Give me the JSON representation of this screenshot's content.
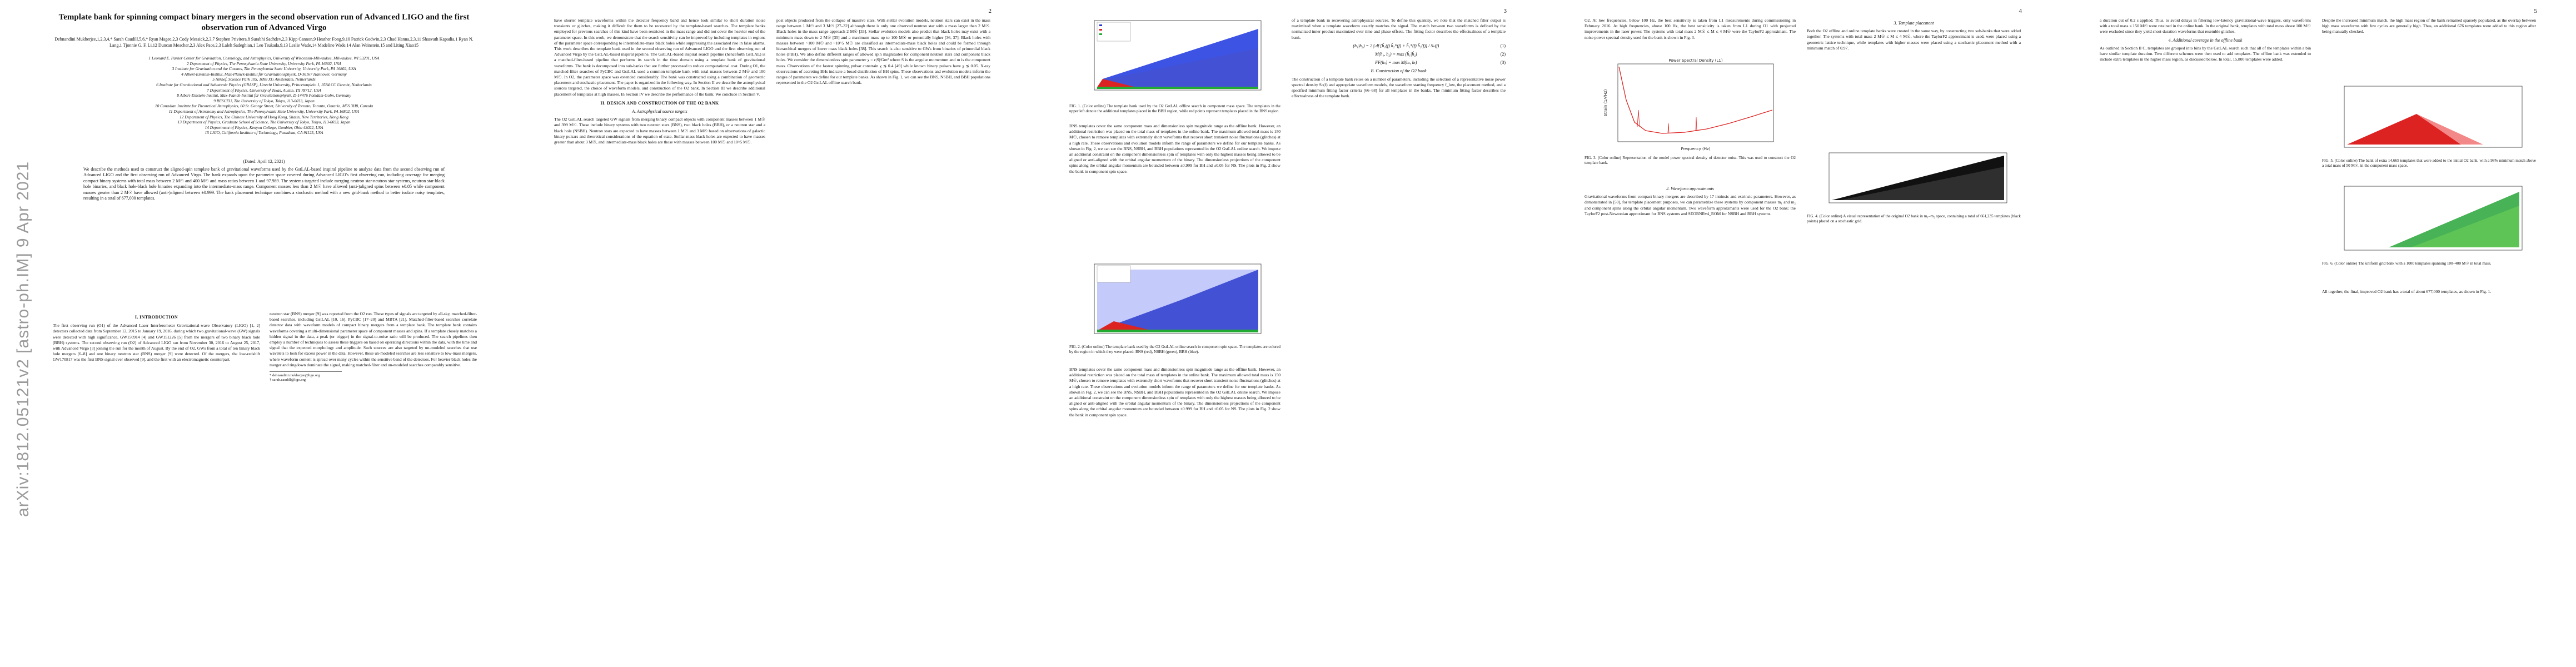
{
  "arxiv_stamp": "arXiv:1812.05121v2  [astro-ph.IM]  9 Apr 2021",
  "pages": {
    "p2": "2",
    "p3": "3",
    "p4": "4",
    "p5": "5"
  },
  "title": "Template bank for spinning compact binary mergers in the second observation run of Advanced LIGO and the first observation run of Advanced Virgo",
  "authors": "Debnandini Mukherjee,1,2,3,4,* Sarah Caudill,5,6,* Ryan Magee,2,3 Cody Messick,2,3,7 Stephen Privitera,8 Surabhi Sachdev,2,3 Kipp Cannon,9 Heather Fong,9,10 Patrick Godwin,2,3 Chad Hanna,2,3,11 Shasvath Kapadia,1 Ryan N. Lang,1 Tjonnie G. F. Li,12 Duncan Meacher,2,3 Alex Pace,2,3 Laleh Sadeghian,1 Leo Tsukada,9,13 Leslie Wade,14 Madeline Wade,14 Alan Weinstein,15 and Liting Xiao15",
  "affiliations": [
    "1 Leonard E. Parker Center for Gravitation, Cosmology, and Astrophysics, University of Wisconsin-Milwaukee, Milwaukee, WI 53201, USA",
    "2 Department of Physics, The Pennsylvania State University, University Park, PA 16802, USA",
    "3 Institute for Gravitation and the Cosmos, The Pennsylvania State University, University Park, PA 16802, USA",
    "4 Albert-Einstein-Institut, Max-Planck-Institut für Gravitationsphysik, D-30167 Hannover, Germany",
    "5 Nikhef, Science Park 105, 1098 XG Amsterdam, Netherlands",
    "6 Institute for Gravitational and Subatomic Physics (GRASP), Utrecht University, Princetonplein 1, 3584 CC Utrecht, Netherlands",
    "7 Department of Physics, University of Texas, Austin, TX 78712, USA",
    "8 Albert-Einstein-Institut, Max-Planck-Institut für Gravitationsphysik, D-14476 Potsdam-Golm, Germany",
    "9 RESCEU, The University of Tokyo, Tokyo, 113-0033, Japan",
    "10 Canadian Institute for Theoretical Astrophysics, 60 St. George Street, University of Toronto, Toronto, Ontario, M5S 3H8, Canada",
    "11 Department of Astronomy and Astrophysics, The Pennsylvania State University, University Park, PA 16802, USA",
    "12 Department of Physics, The Chinese University of Hong Kong, Shatin, New Territories, Hong Kong",
    "13 Department of Physics, Graduate School of Science, The University of Tokyo, Tokyo, 113-0033, Japan",
    "14 Department of Physics, Kenyon College, Gambier, Ohio 43022, USA",
    "15 LIGO, California Institute of Technology, Pasadena, CA 91125, USA"
  ],
  "date": "(Dated: April 12, 2021)",
  "abstract": "We describe the methods used to construct the aligned-spin template bank of gravitational waveforms used by the GstLAL-based inspiral pipeline to analyze data from the second observing run of Advanced LIGO and the first observing run of Advanced Virgo. The bank expands upon the parameter space covered during Advanced LIGO's first observing run, including coverage for merging compact binary systems with total mass between 2 M☉ and 400 M☉ and mass ratios between 1 and 97.989. The systems targeted include merging neutron star-neutron star systems, neutron star-black hole binaries, and black hole-black hole binaries expanding into the intermediate-mass range. Component masses less than 2 M☉ have allowed (anti-)aligned spins between ±0.05 while component masses greater than 2 M☉ have allowed (anti-)aligned between ±0.999. The bank placement technique combines a stochastic method with a new grid-bank method to better isolate noisy templates, resulting in a total of 677,000 templates.",
  "p1": {
    "intro_heading": "I.   INTRODUCTION",
    "intro_text": "The first observing run (O1) of the Advanced Laser Interferometer Gravitational-wave Observatory (LIGO) [1, 2] detectors collected data from September 12, 2015 to January 19, 2016, during which two gravitational-wave (GW) signals were detected with high significance, GW150914 [4] and GW151226 [5] from the mergers of two binary black hole (BBH) systems. The second observing run (O2) of Advanced LIGO ran from November 30, 2016 to August 25, 2017, with Advanced Virgo [3] joining the run for the month of August. By the end of O2, GWs from a total of ten binary black hole mergers [6–8] and one binary neutron star (BNS) merger [9] were detected. Of the mergers, the low-redshift GW170817 was the first BNS signal ever observed [9], and the first with an electromagnetic counterpart.",
    "right_text": "neutron star (BNS) merger [9] was reported from the O2 run. These types of signals are targeted by all-sky, matched-filter-based searches, including GstLAL [10, 16], PyCBC [17–20] and MBTA [21]. Matched-filter-based searches correlate detector data with waveform models of compact binary mergers from a template bank. The template bank contains waveforms covering a multi-dimensional parameter space of component masses and spins. If a template closely matches a hidden signal in the data, a peak (or trigger) in the signal-to-noise ratio will be produced. The search pipelines then employ a number of techniques to assess these triggers on based on operating directions within the data, with the time and signal that the expected morphology and amplitude. Such sources are also targeted by un-modeled searches that use wavelets to look for excess power in the data. However, these un-modeled searches are less sensitive to low-mass mergers, where waveform content is spread over many cycles within the sensitive band of the detectors. For heavier black holes the merger and ringdown dominate the signal, making matched-filter and un-modeled searches comparably sensitive.",
    "footnote_1": "* debnandini.mukherjee@ligo.org",
    "footnote_2": "† sarah.caudill@ligo.org"
  },
  "p2": {
    "left_text": "have shorter template waveforms within the detector frequency band and hence look similar to short duration noise transients or glitches, making it difficult for them to be recovered by the template-based searches. The template banks employed for previous searches of this kind have been restricted in the mass range and did not cover the heavier end of the parameter space. In this work, we demonstrate that the search sensitivity can be improved by including templates in regions of the parameter space corresponding to intermediate-mass black holes while suppressing the associated rise in false alarms. This work describes the template bank used in the second observing run of Advanced LIGO and the first observing run of Advanced Virgo by the GstLAL-based inspiral pipeline. The GstLAL-based inspiral search pipeline (henceforth GstLAL) is a matched-filter-based pipeline that performs its search in the time domain using a template bank of gravitational waveforms. The bank is decomposed into sub-banks that are further processed to reduce computational cost. During O1, the matched-filter searches of PyCBC and GstLAL used a common template bank with total masses between 2 M☉ and 100 M☉. In O2, the parameter space was extended considerably. The bank was constructed using a combination of geometric placement and stochastic placement. The paper is organized in the following way. In Section II we describe the astrophysical sources targeted, the choice of waveform models, and construction of the O2 bank. In Section III we describe additional placement of templates at high masses. In Section IV we describe the performance of the bank. We conclude in Section V.",
    "sec2_heading": "II.   DESIGN AND CONSTRUCTION OF THE O2 BANK",
    "sec2a_heading": "A.   Astrophysical source targets",
    "sec2a_text": "The O2 GstLAL search targeted GW signals from merging binary compact objects with component masses between 1 M☉ and 399 M☉. These include binary systems with two neutron stars (BNS), two black holes (BBH), or a neutron star and a black hole (NSBH). Neutron stars are expected to have masses between 1 M☉ and 3 M☉ based on observations of galactic binary pulsars and theoretical considerations of the equation of state. Stellar-mass black holes are expected to have masses greater than about 3 M☉, and intermediate-mass black holes are those with masses between 100 M☉ and 10^5 M☉.",
    "right_text": "post objects produced from the collapse of massive stars. With stellar evolution models, neutron stars can exist in the mass range between 1 M☉ and 3 M☉ [27–32] although there is only one observed neutron star with a mass larger than 2 M☉. Black holes in the mass range approach 2 M☉ [33]. Stellar evolution models also predict that black holes may exist with a minimum mass down to 2 M☉ [35] and a maximum mass up to 100 M☉ or potentially higher [36, 37]. Black holes with masses between ~100 M☉ and ~10^5 M☉ are classified as intermediate-mass black holes and could be formed through hierarchical mergers of lower mass black holes [38]. This search is also sensitive to GWs from binaries of primordial black holes (PBH). We also define different ranges of allowed spin magnitudes for component neutron stars and component black holes. We consider the dimensionless spin parameter χ = c|S|/Gm² where S is the angular momentum and m is the component mass. Observations of the fastest spinning pulsar constrain χ ≲ 0.4 [49] while known binary pulsars have χ ≲ 0.05. X-ray observations of accreting BHs indicate a broad distribution of BH spins. These observations and evolution models inform the ranges of parameters we define for our template banks. As shown in Fig. 1, we can see the BNS, NSBH, and BBH populations represented in the O2 GstLAL offline search bank."
  },
  "p3": {
    "fig1_caption": "FIG. 1. (Color online) The template bank used by the O2 GstLAL offline search in component mass space. The templates in the upper left denote the additional templates placed in the BBH region, while red points represent templates placed in the BNS region.",
    "fig2_caption": "FIG. 2. (Color online) The template bank used by the O2 GstLAL online search in component spin space. The templates are colored by the region in which they were placed: BNS (red), NSBH (green), BBH (blue).",
    "left_text": "BNS templates cover the same component mass and dimensionless spin magnitude range as the offline bank. However, an additional restriction was placed on the total mass of templates in the online bank. The maximum allowed total mass is 150 M☉, chosen to remove templates with extremely short waveforms that recover short transient noise fluctuations (glitches) at a high rate. These observations and evolution models inform the range of parameters we define for our template banks. As shown in Fig. 2, we can see the BNS, NSBH, and BBH populations represented in the O2 GstLAL online search. We impose an additional constraint on the component dimensionless spin of templates with only the highest masses being allowed to be aligned or anti-aligned with the orbital angular momentum of the binary. The dimensionless projections of the component spins along the orbital angular momentum are bounded between ±0.999 for BH and ±0.05 for NS. The plots in Fig. 2 show the bank in component spin space.",
    "right_text": "of a template bank in recovering astrophysical sources. To define this quantity, we note that the matched filter output is maximized when a template waveform exactly matches the signal. The match between two waveforms is defined by the normalized inner product maximized over time and phase offsets. The fitting factor describes the effectualness of a template bank.",
    "eq_1": "(h₁|h₂) = 2 ∫ df [h̃₁(f) h̃₂*(f) + h̃₁*(f) h̃₂(f)] / Sₙ(f)",
    "eq_1_num": "(1)",
    "eq_2": "M(h₁, h₂) = max (ĥ₁|ĥ₂)",
    "eq_2_num": "(2)",
    "eq_3": "FF(hₛ) = max M(hₛ, hₜ)",
    "eq_3_num": "(3)",
    "sec2b_heading": "B.   Construction of the O2 bank",
    "sec2b_text": "The construction of a template bank relies on a number of parameters, including the selection of a representative noise power spectral density Sₙ(f) and appropriate waveform models, the waveform starting frequency f_low, the placement method, and a specified minimum fitting factor criteria [66–68] for all templates in the banks. The minimum fitting factor describes the effectualness of the template bank."
  },
  "p4": {
    "left_text": "O2. At low frequencies, below 100 Hz, the best sensitivity is taken from L1 measurements during commissioning in February 2016. At high frequencies, above 100 Hz, the best sensitivity is taken from L1 during O1 with projected improvements in the laser power. The systems with total mass 2 M☉ ≤ M ≤ 4 M☉ were the TaylorF2 approximant. The noise power spectral density used for the bank is shown in Fig. 3.",
    "fig3_title": "Power Spectral Density (L1)",
    "fig3_xlabel": "Frequency (Hz)",
    "fig3_ylabel": "Strain (1/√Hz)",
    "fig3_caption": "FIG. 3. (Color online) Representation of the model power spectral density of detector noise. This was used to construct the O2 template bank.",
    "sec_c_heading": "2.   Waveform approximants",
    "sec_c_text": "Gravitational waveforms from compact binary mergers are described by 17 intrinsic and extrinsic parameters. However, as demonstrated in [50], for template placement purposes, we can parametrize these systems by component masses m₁ and m₂ and component spins along the orbital angular momentum. Two waveform approximants were used for the O2 bank: the TaylorF2 post-Newtonian approximant for BNS systems and SEOBNRv4_ROM for NSBH and BBH systems.",
    "right_heading": "3.   Template placement",
    "right_text": "Both the O2 offline and online template banks were created in the same way, by constructing two sub-banks that were added together. The systems with total mass 2 M☉ ≤ M ≤ 4 M☉, where the TaylorF2 approximant is used, were placed using a geometric lattice technique, while templates with higher masses were placed using a stochastic placement method with a minimum match of 0.97.",
    "fig4_caption": "FIG. 4. (Color online) A visual representation of the original O2 bank in m₁–m₂ space, containing a total of 661,235 templates (black points) placed on a stochastic grid."
  },
  "p5": {
    "left_text": "a duration cut of 0.2 s applied. Thus, to avoid delays in filtering low-latency gravitational-wave triggers, only waveforms with a total mass ≤ 150 M☉ were retained in the online bank. In the original bank, templates with total mass above 100 M☉ were excluded since they yield short-duration waveforms that resemble glitches.",
    "sec3_heading": "4.   Additional coverage in the offline bank",
    "sec3_text": "As outlined in Section II C, templates are grouped into bins by the GstLAL search such that all of the templates within a bin have similar template duration. Two different schemes were then used to add templates. The offline bank was extended to include extra templates in the higher mass region, as discussed below. In total, 15,800 templates were added.",
    "right_text": "Despite the increased minimum match, the high mass region of the bank remained sparsely populated, as the overlap between high mass waveforms with few cycles are generally high. Thus, an additional 676 templates were added to this region after being manually checked.",
    "fig5_caption": "FIG. 5. (Color online) The bank of extra 14,665 templates that were added to the initial O2 bank, with a 98% minimum match above a total mass of 50 M☉, in the component mass space.",
    "fig6_caption": "FIG. 6. (Color online) The uniform grid bank with a 1000 templates spanning 100–400 M☉ in total mass.",
    "closing_text": "All together, the final, improved O2 bank has a total of about 677,000 templates, as shown in Fig. 1."
  }
}
